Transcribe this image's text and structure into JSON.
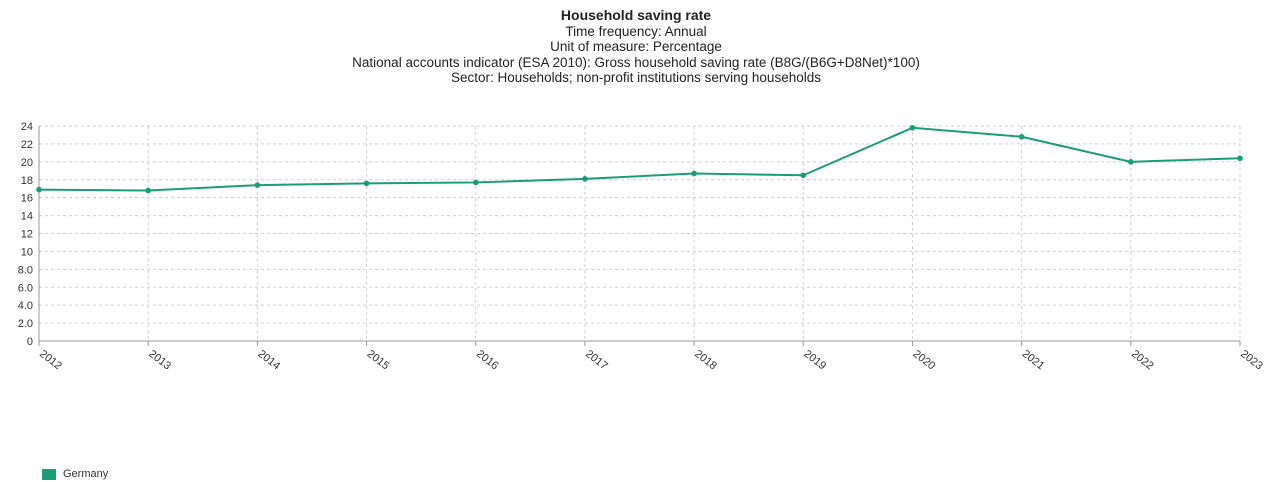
{
  "chart_data": {
    "type": "line",
    "title": "Household saving rate",
    "subtitles": [
      "Time frequency: Annual",
      "Unit of measure: Percentage",
      "National accounts indicator (ESA 2010): Gross household saving rate (B8G/(B6G+D8Net)*100)",
      "Sector: Households; non-profit institutions serving households"
    ],
    "x": [
      "2012",
      "2013",
      "2014",
      "2015",
      "2016",
      "2017",
      "2018",
      "2019",
      "2020",
      "2021",
      "2022",
      "2023"
    ],
    "series": [
      {
        "name": "Germany",
        "color": "#1a9e77",
        "values": [
          16.9,
          16.8,
          17.4,
          17.6,
          17.7,
          18.1,
          18.7,
          18.5,
          23.8,
          22.8,
          20.0,
          20.4
        ]
      }
    ],
    "y_ticks": [
      "0",
      "2.0",
      "4.0",
      "6.0",
      "8.0",
      "10",
      "12",
      "14",
      "16",
      "18",
      "20",
      "22",
      "24"
    ],
    "ylim": [
      0,
      24
    ],
    "grid": true,
    "legend_position": "bottom-left"
  }
}
